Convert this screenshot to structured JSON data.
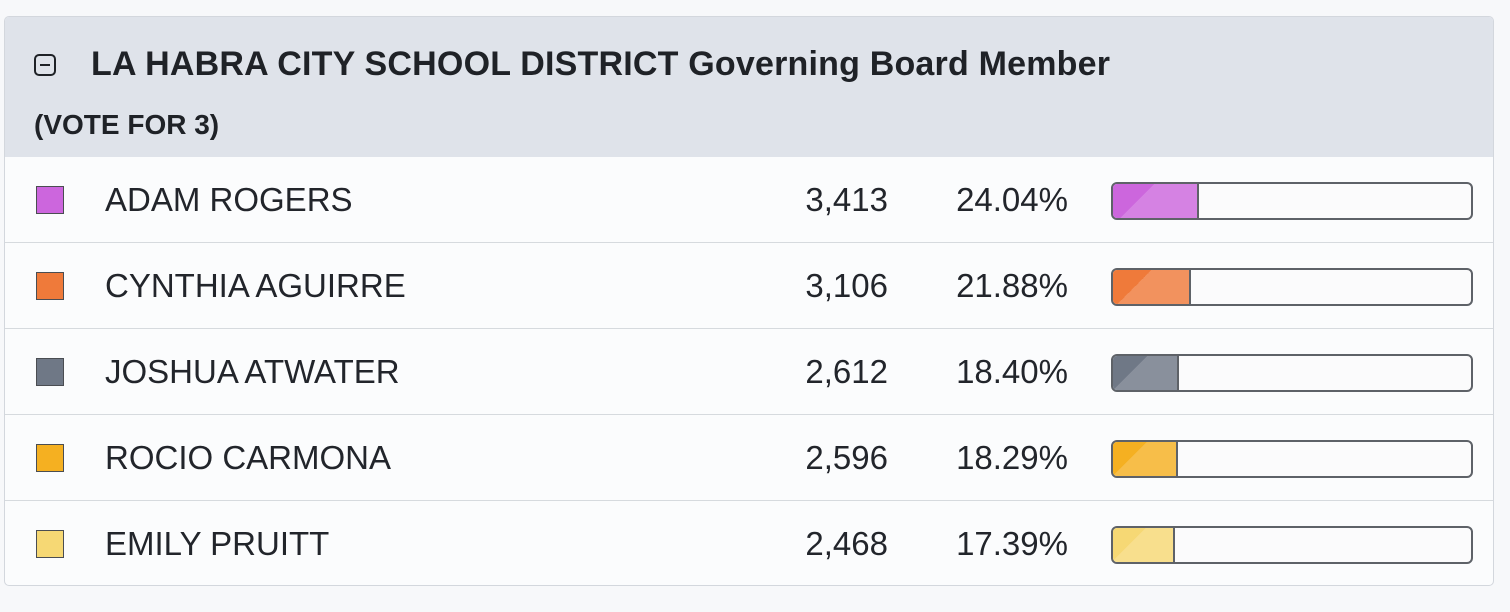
{
  "contest": {
    "title": "LA HABRA CITY SCHOOL DISTRICT Governing Board Member",
    "subtitle": "(VOTE FOR 3)"
  },
  "candidates": [
    {
      "name": "ADAM ROGERS",
      "votes": "3,413",
      "percent": "24.04%",
      "percent_value": 24.04,
      "color": "#cc66dd"
    },
    {
      "name": "CYNTHIA AGUIRRE",
      "votes": "3,106",
      "percent": "21.88%",
      "percent_value": 21.88,
      "color": "#ef7a3a"
    },
    {
      "name": "JOSHUA ATWATER",
      "votes": "2,612",
      "percent": "18.40%",
      "percent_value": 18.4,
      "color": "#6f7886"
    },
    {
      "name": "ROCIO CARMONA",
      "votes": "2,596",
      "percent": "18.29%",
      "percent_value": 18.29,
      "color": "#f5b021"
    },
    {
      "name": "EMILY PRUITT",
      "votes": "2,468",
      "percent": "17.39%",
      "percent_value": 17.39,
      "color": "#f6d874"
    }
  ],
  "icons": {
    "collapse": "minus-square-icon"
  }
}
